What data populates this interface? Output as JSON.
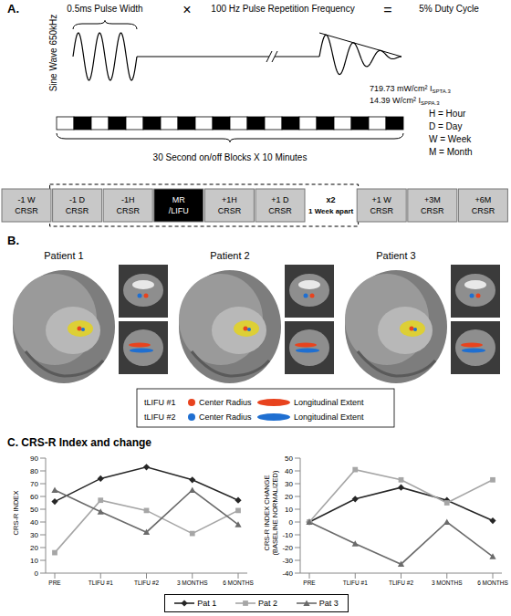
{
  "panel_a": {
    "label": "A.",
    "pulse_width": "0.5ms Pulse Width",
    "times": "×",
    "prf": "100 Hz Pulse Repetition Frequency",
    "equals": "=",
    "duty_cycle": "5% Duty Cycle",
    "carrier": "Sine Wave 650kHz",
    "intensities": [
      {
        "value": "719.73 mW/cm²",
        "symbol": "I",
        "subscript": "SPTA.3"
      },
      {
        "value": "14.39 W/cm²",
        "symbol": "I",
        "subscript": "SPPA.3"
      }
    ],
    "blocks": "30 Second on/off Blocks X 10 Minutes",
    "abbreviations": [
      "H = Hour",
      "D = Day",
      "W = Week",
      "M = Month"
    ],
    "timeline": {
      "before": [
        {
          "lines": [
            "-1 W",
            "CRSR"
          ],
          "highlight": false
        }
      ],
      "repeated": [
        {
          "lines": [
            "-1 D",
            "CRSR"
          ],
          "highlight": false
        },
        {
          "lines": [
            "-1H",
            "CRSR"
          ],
          "highlight": false
        },
        {
          "lines": [
            "MR",
            "/LIFU"
          ],
          "highlight": true
        },
        {
          "lines": [
            "+1H",
            "CRSR"
          ],
          "highlight": false
        },
        {
          "lines": [
            "+1 D",
            "CRSR"
          ],
          "highlight": false
        }
      ],
      "repeat_label": [
        "x2",
        "1 Week apart"
      ],
      "after": [
        {
          "lines": [
            "+1 W",
            "CRSR"
          ],
          "highlight": false
        },
        {
          "lines": [
            "+3M",
            "CRSR"
          ],
          "highlight": false
        },
        {
          "lines": [
            "+6M",
            "CRSR"
          ],
          "highlight": false
        }
      ]
    }
  },
  "panel_b": {
    "label": "B.",
    "patients": [
      "Patient 1",
      "Patient 2",
      "Patient 3"
    ],
    "legend": [
      {
        "name": "tLIFU #1",
        "color": "#e8431e",
        "center": "Center Radius",
        "extent": "Longitudinal Extent"
      },
      {
        "name": "tLIFU #2",
        "color": "#1f6fd1",
        "center": "Center Radius",
        "extent": "Longitudinal Extent"
      }
    ]
  },
  "panel_c": {
    "title": "C. CRS-R Index and change",
    "legend": "bottom"
  },
  "chart_data": [
    {
      "type": "line",
      "y_label": [
        "CRS-R INDEX"
      ],
      "categories": [
        "PRE",
        "TLIFU #1",
        "TLIFU #2",
        "3 MONTHS",
        "6 MONTHS"
      ],
      "ylim": [
        0,
        90
      ],
      "yticks": [
        0,
        10,
        20,
        30,
        40,
        50,
        60,
        70,
        80,
        90
      ],
      "grid": false,
      "series": [
        {
          "name": "Pat 1",
          "color": "#262626",
          "marker": "diamond",
          "values": [
            56,
            74,
            83,
            73,
            57
          ]
        },
        {
          "name": "Pat 2",
          "color": "#a6a6a6",
          "marker": "square",
          "values": [
            16,
            57,
            49,
            31,
            49
          ]
        },
        {
          "name": "Pat 3",
          "color": "#6b6b6b",
          "marker": "triangle",
          "values": [
            65,
            48,
            32,
            65,
            38
          ]
        }
      ]
    },
    {
      "type": "line",
      "y_label": [
        "CRS-R INDEX CHANGE",
        "(BASELINE NORMALIZED)"
      ],
      "categories": [
        "PRE",
        "TLIFU #1",
        "TLIFU #2",
        "3 MONTHS",
        "6 MONTHS"
      ],
      "ylim": [
        -40,
        50
      ],
      "yticks": [
        -40,
        -30,
        -20,
        -10,
        0,
        10,
        20,
        30,
        40,
        50
      ],
      "grid": false,
      "series": [
        {
          "name": "Pat 1",
          "color": "#262626",
          "marker": "diamond",
          "values": [
            0,
            18,
            27,
            17,
            1
          ]
        },
        {
          "name": "Pat 2",
          "color": "#a6a6a6",
          "marker": "square",
          "values": [
            0,
            41,
            33,
            15,
            33
          ]
        },
        {
          "name": "Pat 3",
          "color": "#6b6b6b",
          "marker": "triangle",
          "values": [
            0,
            -17,
            -33,
            0,
            -27
          ]
        }
      ]
    }
  ]
}
